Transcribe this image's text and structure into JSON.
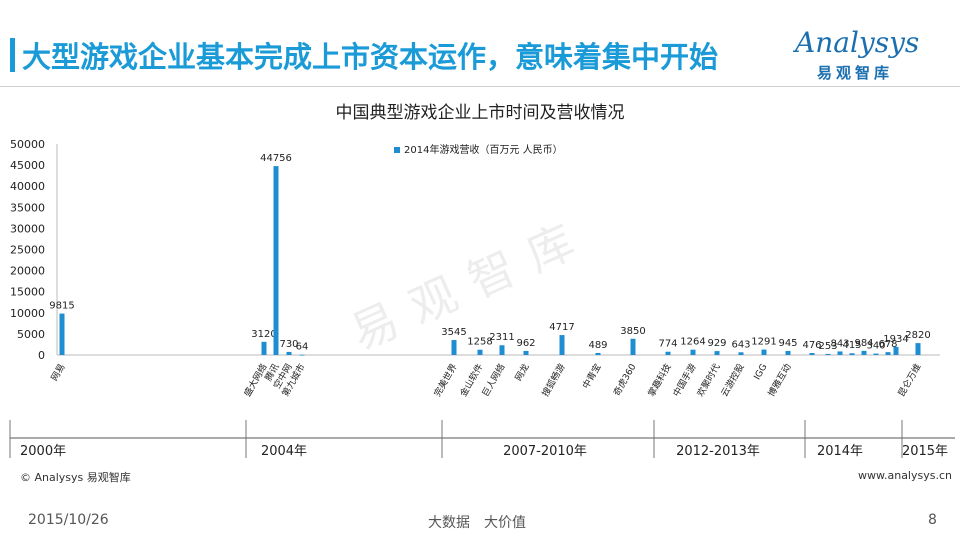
{
  "slide": {
    "title": "大型游戏企业基本完成上市资本运作，意味着集中开始",
    "logo_word": "Analysys",
    "logo_sub": "易观智库",
    "copyright": "© Analysys 易观智库",
    "website": "www.analysys.cn",
    "date": "2015/10/26",
    "slogan": "大数据　大价值",
    "page_number": "8",
    "watermark": "易观智库"
  },
  "colors": {
    "accent": "#1a9bd7",
    "bar": "#1e8ed1",
    "logo": "#1a6fb0"
  },
  "chart_data": {
    "type": "bar",
    "title": "中国典型游戏企业上市时间及营收情况",
    "legend": {
      "label": "2014年游戏营收（百万元 人民币）",
      "position": "top"
    },
    "ylim": [
      0,
      50000
    ],
    "yticks": [
      "50000",
      "45000",
      "40000",
      "35000",
      "30000",
      "25000",
      "20000",
      "15000",
      "10000",
      "5000",
      "0"
    ],
    "ytick_values": [
      50000,
      45000,
      40000,
      35000,
      30000,
      25000,
      20000,
      15000,
      10000,
      5000,
      0
    ],
    "bars": [
      {
        "name": "网易",
        "value": 9815,
        "label": "9815"
      },
      {
        "name": "盛大网络",
        "value": 3120,
        "label": "3120"
      },
      {
        "name": "腾讯",
        "value": 44756,
        "label": "44756"
      },
      {
        "name": "空中网",
        "value": 730,
        "label": "730"
      },
      {
        "name": "第九城市",
        "value": 64,
        "label": "64"
      },
      {
        "name": "完美世界",
        "value": 3545,
        "label": "3545"
      },
      {
        "name": "金山软件",
        "value": 1258,
        "label": "1258"
      },
      {
        "name": "巨人网络",
        "value": 2311,
        "label": "2311"
      },
      {
        "name": "网龙",
        "value": 962,
        "label": "962"
      },
      {
        "name": "搜狐畅游",
        "value": 4717,
        "label": "4717"
      },
      {
        "name": "中青宝",
        "value": 489,
        "label": "489"
      },
      {
        "name": "奇虎360",
        "value": 3850,
        "label": "3850"
      },
      {
        "name": "掌趣科技",
        "value": 774,
        "label": "774"
      },
      {
        "name": "中国手游",
        "value": 1264,
        "label": "1264"
      },
      {
        "name": "欢聚时代",
        "value": 929,
        "label": "929"
      },
      {
        "name": "云游控股",
        "value": 643,
        "label": "643"
      },
      {
        "name": "IGG",
        "value": 1291,
        "label": "1291"
      },
      {
        "name": "博雅互动",
        "value": 945,
        "label": "945"
      },
      {
        "name": "",
        "value": 476,
        "label": "476"
      },
      {
        "name": "",
        "value": 253,
        "label": "253"
      },
      {
        "name": "",
        "value": 843,
        "label": "843"
      },
      {
        "name": "",
        "value": 415,
        "label": "415"
      },
      {
        "name": "",
        "value": 984,
        "label": "984"
      },
      {
        "name": "",
        "value": 340,
        "label": "340"
      },
      {
        "name": "",
        "value": 678,
        "label": "678"
      },
      {
        "name": "",
        "value": 1934,
        "label": "1934"
      },
      {
        "name": "昆仑万维",
        "value": 2820,
        "label": "2820"
      }
    ],
    "timeline": [
      "2000年",
      "2004年",
      "2007-2010年",
      "2012-2013年",
      "2014年",
      "2015年"
    ]
  }
}
